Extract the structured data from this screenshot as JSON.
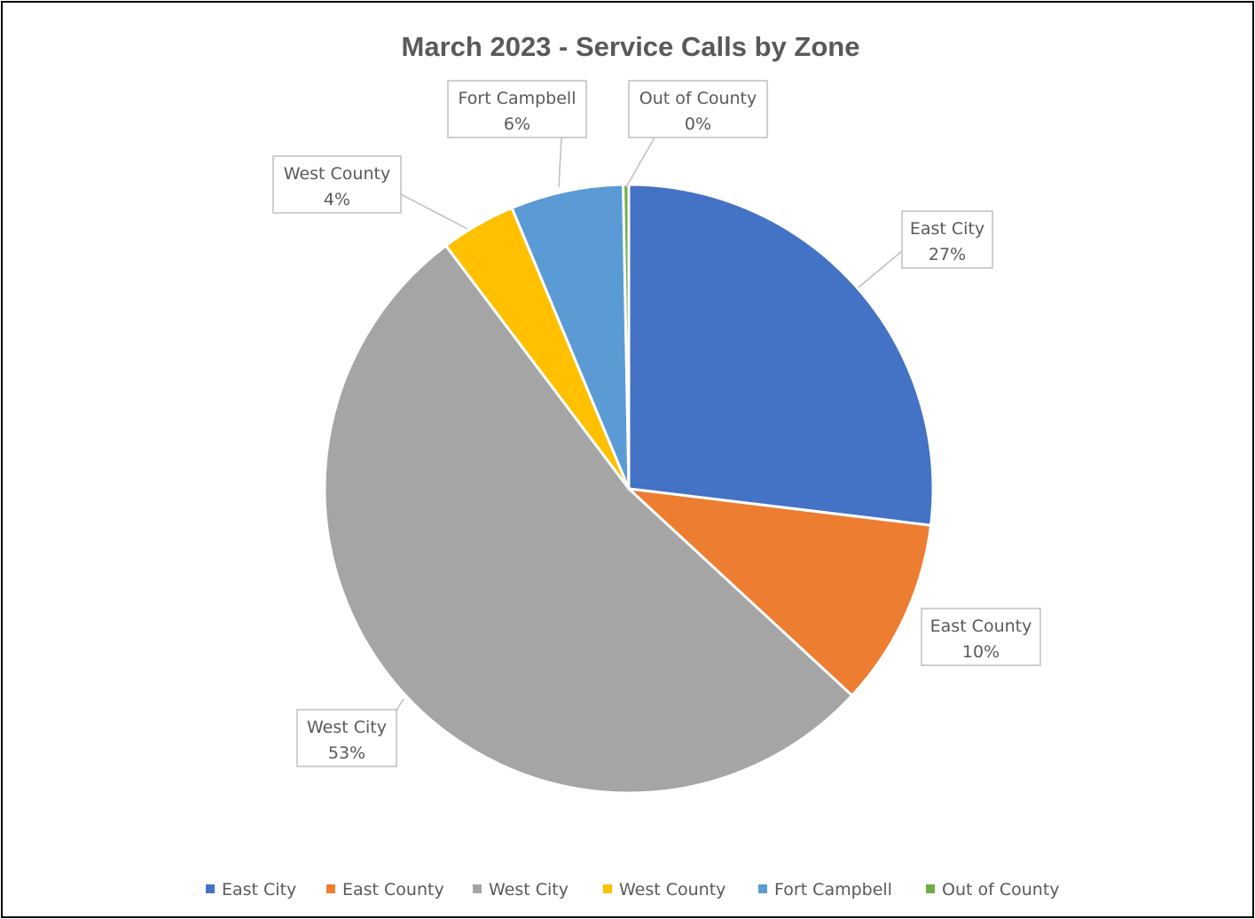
{
  "chart_data": {
    "type": "pie",
    "title": "March 2023 - Service Calls by Zone",
    "categories": [
      "East City",
      "East County",
      "West City",
      "West County",
      "Fort Campbell",
      "Out of County"
    ],
    "values": [
      27,
      10,
      53,
      4,
      6,
      0
    ],
    "percent_labels": [
      "27%",
      "10%",
      "53%",
      "4%",
      "6%",
      "0%"
    ],
    "colors": [
      "#4472C4",
      "#ED7D31",
      "#A5A5A5",
      "#FFC000",
      "#5B9BD5",
      "#70AD47"
    ],
    "data_labels": "callout-outside",
    "legend_position": "bottom"
  }
}
